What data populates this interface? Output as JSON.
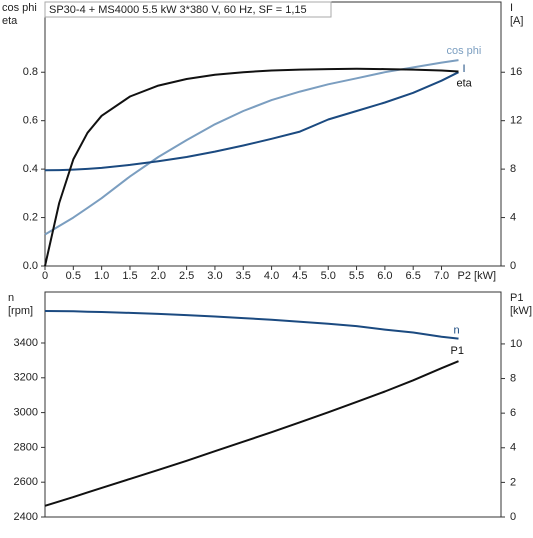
{
  "chart_data": [
    {
      "type": "line",
      "title": "SP30-4 + MS4000   5.5 kW   3*380 V, 60 Hz, SF = 1,15",
      "ylabel": [
        "cos phi",
        "eta"
      ],
      "y2label": [
        "I",
        "[A]"
      ],
      "xlabel": "P2 [kW]",
      "x": [
        0,
        0.25,
        0.5,
        0.75,
        1,
        1.5,
        2,
        2.5,
        3,
        3.5,
        4,
        4.5,
        5,
        5.5,
        6,
        6.5,
        7,
        7.3
      ],
      "xlim": [
        0,
        8.05
      ],
      "xticks": [
        0,
        0.5,
        {
          "value": 1,
          "label": "1.0"
        },
        1.5,
        {
          "value": 2,
          "label": "2.0"
        },
        2.5,
        {
          "value": 3,
          "label": "3.0"
        },
        3.5,
        {
          "value": 4,
          "label": "4.0"
        },
        4.5,
        {
          "value": 5,
          "label": "5.0"
        },
        5.5,
        {
          "value": 6,
          "label": "6.0"
        },
        6.5,
        {
          "value": 7,
          "label": "7.0"
        }
      ],
      "ylim": [
        0,
        1.09
      ],
      "yticks": [
        {
          "value": 0,
          "label": "0.0"
        },
        0.2,
        0.4,
        0.6,
        0.8
      ],
      "y2lim": [
        0,
        21.8
      ],
      "y2ticks": [
        0,
        4,
        8,
        12,
        16
      ],
      "series": [
        {
          "name": "cos phi",
          "color": "#7b9ec0",
          "values": [
            0.13,
            0.165,
            0.2,
            0.24,
            0.28,
            0.37,
            0.45,
            0.52,
            0.585,
            0.64,
            0.685,
            0.72,
            0.75,
            0.775,
            0.8,
            0.82,
            0.84,
            0.85
          ]
        },
        {
          "name": "I",
          "color": "#1b4a80",
          "axis": "y2",
          "values": [
            7.9,
            7.92,
            7.96,
            8.02,
            8.1,
            8.35,
            8.65,
            9.0,
            9.45,
            9.95,
            10.5,
            11.1,
            12.1,
            12.8,
            13.5,
            14.3,
            15.3,
            16.0
          ]
        },
        {
          "name": "eta",
          "color": "#111111",
          "values": [
            0,
            0.26,
            0.44,
            0.55,
            0.62,
            0.7,
            0.745,
            0.772,
            0.79,
            0.8,
            0.807,
            0.811,
            0.813,
            0.814,
            0.813,
            0.811,
            0.807,
            0.803
          ]
        }
      ]
    },
    {
      "type": "line",
      "ylabel": [
        "n",
        "[rpm]"
      ],
      "y2label": [
        "P1",
        "[kW]"
      ],
      "x": [
        0,
        0.25,
        0.5,
        0.75,
        1,
        1.5,
        2,
        2.5,
        3,
        3.5,
        4,
        4.5,
        5,
        5.5,
        6,
        6.5,
        7,
        7.3
      ],
      "xlim": [
        0,
        8.05
      ],
      "ylim": [
        2400,
        3693
      ],
      "yticks": [
        2400,
        2600,
        2800,
        3000,
        3200,
        3400
      ],
      "y2lim": [
        0,
        13
      ],
      "y2ticks": [
        0,
        2,
        4,
        6,
        8,
        10
      ],
      "series": [
        {
          "name": "n",
          "color": "#1b4a80",
          "values": [
            3584,
            3583,
            3582,
            3580,
            3578,
            3573,
            3567,
            3560,
            3552,
            3543,
            3533,
            3522,
            3510,
            3497,
            3477,
            3460,
            3436,
            3425
          ]
        },
        {
          "name": "P1",
          "color": "#111111",
          "axis": "y2",
          "values": [
            0.65,
            0.9,
            1.15,
            1.42,
            1.68,
            2.2,
            2.72,
            3.25,
            3.8,
            4.35,
            4.9,
            5.47,
            6.05,
            6.65,
            7.25,
            7.9,
            8.6,
            9.0
          ]
        }
      ]
    }
  ]
}
